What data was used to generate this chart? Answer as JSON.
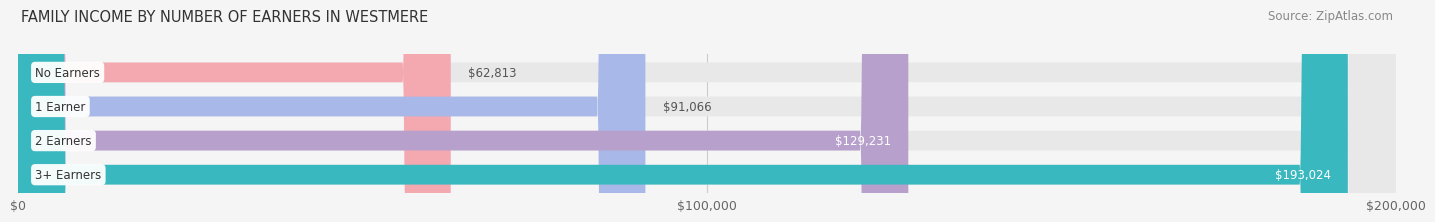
{
  "title": "FAMILY INCOME BY NUMBER OF EARNERS IN WESTMERE",
  "source": "Source: ZipAtlas.com",
  "categories": [
    "No Earners",
    "1 Earner",
    "2 Earners",
    "3+ Earners"
  ],
  "values": [
    62813,
    91066,
    129231,
    193024
  ],
  "labels": [
    "$62,813",
    "$91,066",
    "$129,231",
    "$193,024"
  ],
  "bar_colors": [
    "#f4a8b0",
    "#a8b8e8",
    "#b8a0cc",
    "#3ab8c0"
  ],
  "bar_bg_color": "#e8e8e8",
  "label_colors": [
    "#555555",
    "#555555",
    "#ffffff",
    "#ffffff"
  ],
  "xlim": [
    0,
    200000
  ],
  "xtick_labels": [
    "$0",
    "$100,000",
    "$200,000"
  ],
  "title_fontsize": 10.5,
  "source_fontsize": 8.5,
  "bar_height": 0.58,
  "background_color": "#f5f5f5",
  "label_inside_threshold": 110000
}
